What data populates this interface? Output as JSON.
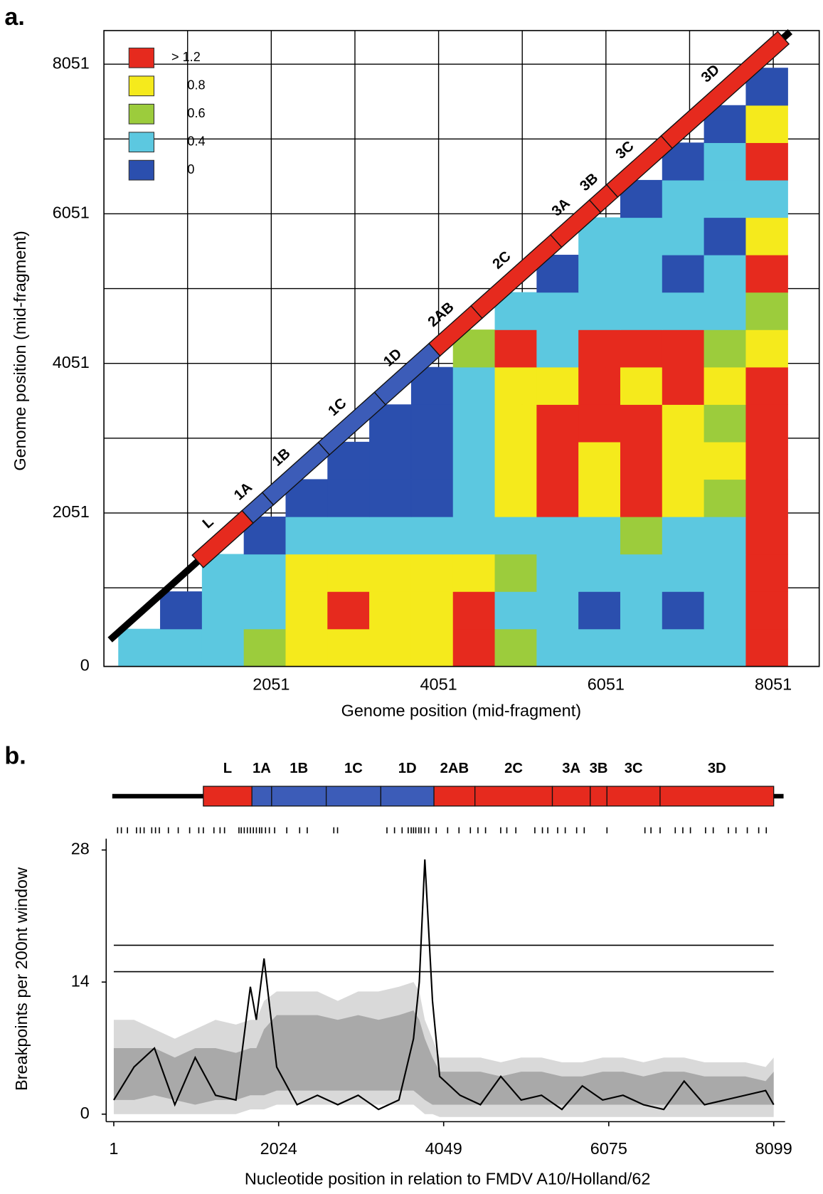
{
  "chart_data": [
    {
      "type": "heatmap",
      "panel": "a.",
      "xlabel": "Genome position (mid-fragment)",
      "ylabel": "Genome position (mid-fragment)",
      "xlim": [
        51,
        8600
      ],
      "ylim": [
        0,
        8500
      ],
      "xticks": [
        2051,
        4051,
        6051,
        8051
      ],
      "xminor": [
        1051,
        3051,
        5051,
        7051
      ],
      "yticks": [
        0,
        2051,
        4051,
        6051,
        8051
      ],
      "yminor": [
        1051,
        3051,
        5051,
        7051
      ],
      "grid": true,
      "color_scale": [
        {
          "value": 1.2,
          "label": "> 1.2",
          "color": "#e62a1e"
        },
        {
          "value": 0.8,
          "color": "#f5ea1c"
        },
        {
          "value": 0.6,
          "color": "#9ccc3c"
        },
        {
          "value": 0.4,
          "color": "#5cc8e0"
        },
        {
          "value": 0,
          "color": "#2b4fae"
        }
      ],
      "x_bins": [
        225,
        725,
        1225,
        1725,
        2225,
        2725,
        3225,
        3725,
        4225,
        4725,
        5225,
        5725,
        6225,
        6725,
        7225,
        7725,
        8225
      ],
      "y_bins": [
        0,
        500,
        1000,
        1500,
        2000,
        2500,
        3000,
        3500,
        4000,
        4500,
        5000,
        5500,
        6000,
        6500,
        7000,
        7500,
        8000
      ],
      "matrix": [
        [
          0.4,
          0.4,
          0.4,
          0.6,
          0.8,
          0.8,
          0.8,
          0.8,
          1.2,
          0.6,
          0.4,
          0.4,
          0.4,
          0.4,
          0.4,
          1.2
        ],
        [
          null,
          0,
          0.4,
          0.4,
          0.8,
          1.2,
          0.8,
          0.8,
          1.2,
          0.4,
          0.4,
          0,
          0.4,
          0,
          0.4,
          1.2
        ],
        [
          null,
          null,
          0.4,
          0.4,
          0.8,
          0.8,
          0.8,
          0.8,
          0.8,
          0.6,
          0.4,
          0.4,
          0.4,
          0.4,
          0.4,
          1.2
        ],
        [
          null,
          null,
          null,
          0,
          0.4,
          0.4,
          0.4,
          0.4,
          0.4,
          0.4,
          0.4,
          0.4,
          0.6,
          0.4,
          0.4,
          1.2
        ],
        [
          null,
          null,
          null,
          null,
          0,
          0,
          0,
          0,
          0.4,
          0.8,
          1.2,
          0.8,
          1.2,
          0.8,
          0.6,
          1.2
        ],
        [
          null,
          null,
          null,
          null,
          null,
          0,
          0,
          0,
          0.4,
          0.8,
          1.2,
          0.8,
          1.2,
          0.8,
          0.8,
          1.2
        ],
        [
          null,
          null,
          null,
          null,
          null,
          null,
          0,
          0,
          0.4,
          0.8,
          1.2,
          1.2,
          1.2,
          0.8,
          0.6,
          1.2
        ],
        [
          null,
          null,
          null,
          null,
          null,
          null,
          null,
          0,
          0.4,
          0.8,
          0.8,
          1.2,
          0.8,
          1.2,
          0.8,
          1.2
        ],
        [
          null,
          null,
          null,
          null,
          null,
          null,
          null,
          null,
          0.6,
          1.2,
          0.4,
          1.2,
          1.2,
          1.2,
          0.6,
          0.8
        ],
        [
          null,
          null,
          null,
          null,
          null,
          null,
          null,
          null,
          null,
          0.4,
          0.4,
          0.4,
          0.4,
          0.4,
          0.4,
          0.6
        ],
        [
          null,
          null,
          null,
          null,
          null,
          null,
          null,
          null,
          null,
          null,
          0,
          0.4,
          0.4,
          0,
          0.4,
          1.2
        ],
        [
          null,
          null,
          null,
          null,
          null,
          null,
          null,
          null,
          null,
          null,
          null,
          0.4,
          0.4,
          0.4,
          0,
          0.8
        ],
        [
          null,
          null,
          null,
          null,
          null,
          null,
          null,
          null,
          null,
          null,
          null,
          null,
          0,
          0.4,
          0.4,
          0.4
        ],
        [
          null,
          null,
          null,
          null,
          null,
          null,
          null,
          null,
          null,
          null,
          null,
          null,
          null,
          0,
          0.4,
          1.2
        ],
        [
          null,
          null,
          null,
          null,
          null,
          null,
          null,
          null,
          null,
          null,
          null,
          null,
          null,
          null,
          0,
          0.8
        ],
        [
          null,
          null,
          null,
          null,
          null,
          null,
          null,
          null,
          null,
          null,
          null,
          null,
          null,
          null,
          null,
          0
        ]
      ],
      "genes": [
        {
          "name": "L",
          "start": 1100,
          "end": 1696,
          "color": "#e62a1e"
        },
        {
          "name": "1A",
          "start": 1696,
          "end": 1938,
          "color": "#3c5cb8"
        },
        {
          "name": "1B",
          "start": 1938,
          "end": 2608,
          "color": "#3c5cb8"
        },
        {
          "name": "1C",
          "start": 2608,
          "end": 3278,
          "color": "#3c5cb8"
        },
        {
          "name": "1D",
          "start": 3278,
          "end": 3930,
          "color": "#3c5cb8"
        },
        {
          "name": "2AB",
          "start": 3930,
          "end": 4433,
          "color": "#e62a1e"
        },
        {
          "name": "2C",
          "start": 4433,
          "end": 5383,
          "color": "#e62a1e"
        },
        {
          "name": "3A",
          "start": 5383,
          "end": 5848,
          "color": "#e62a1e"
        },
        {
          "name": "3B",
          "start": 5848,
          "end": 6053,
          "color": "#e62a1e"
        },
        {
          "name": "3C",
          "start": 6053,
          "end": 6705,
          "color": "#e62a1e"
        },
        {
          "name": "3D",
          "start": 6705,
          "end": 8099,
          "color": "#e62a1e"
        }
      ]
    },
    {
      "type": "line",
      "panel": "b.",
      "xlabel": "Nucleotide position in relation to FMDV A10/Holland/62",
      "ylabel": "Breakpoints per 200nt window",
      "xlim": [
        1,
        8099
      ],
      "ylim": [
        -0.8,
        29.2
      ],
      "xticks": [
        1,
        2024,
        4049,
        6075,
        8099
      ],
      "yticks": [
        0,
        14,
        28
      ],
      "hlines": [
        17.9,
        15.1
      ],
      "rug": [
        48,
        94,
        169,
        280,
        327,
        373,
        467,
        513,
        560,
        671,
        792,
        932,
        1044,
        1100,
        1230,
        1305,
        1360,
        1537,
        1565,
        1602,
        1640,
        1677,
        1714,
        1751,
        1789,
        1817,
        1863,
        1910,
        1975,
        2124,
        2282,
        2375,
        2701,
        2747,
        3353,
        3446,
        3539,
        3614,
        3651,
        3679,
        3707,
        3744,
        3772,
        3818,
        3865,
        3958,
        4098,
        4237,
        4377,
        4470,
        4563,
        4749,
        4824,
        4935,
        5168,
        5261,
        5327,
        5448,
        5541,
        5681,
        5774,
        6053,
        6519,
        6593,
        6705,
        6891,
        6984,
        7077,
        7263,
        7357,
        7543,
        7636,
        7775,
        7915,
        8008
      ],
      "x": [
        1,
        250,
        500,
        750,
        1000,
        1250,
        1500,
        1677,
        1750,
        1845,
        2000,
        2250,
        2500,
        2750,
        3000,
        3250,
        3500,
        3679,
        3750,
        3818,
        3912,
        4000,
        4250,
        4500,
        4750,
        5000,
        5250,
        5500,
        5750,
        6000,
        6250,
        6500,
        6750,
        7000,
        7250,
        7500,
        7750,
        8000,
        8099
      ],
      "bands": [
        {
          "color": "#d9d9d9",
          "upper": [
            10,
            10,
            9,
            8,
            9,
            10,
            9.5,
            10,
            10,
            12,
            13,
            13,
            13,
            12,
            13,
            13,
            13.5,
            14,
            13,
            10,
            8,
            6,
            6,
            6,
            5.5,
            6,
            6,
            5.5,
            5.5,
            6,
            6,
            5.5,
            6,
            6,
            5.5,
            5.5,
            5.5,
            5,
            6
          ],
          "lower": [
            0,
            0,
            0,
            0,
            0,
            0,
            0,
            0.5,
            0.5,
            0.5,
            1,
            1,
            1,
            1,
            1,
            1,
            1,
            1,
            0.5,
            0,
            0,
            -0.3,
            -0.3,
            -0.3,
            -0.3,
            -0.3,
            -0.3,
            -0.3,
            -0.3,
            -0.3,
            -0.3,
            -0.3,
            -0.3,
            -0.3,
            -0.3,
            -0.3,
            -0.3,
            -0.3,
            -0.3
          ]
        },
        {
          "color": "#a9a9a9",
          "upper": [
            7,
            7,
            7,
            6,
            7,
            7,
            6.5,
            7,
            7,
            9,
            10.5,
            10.5,
            10.5,
            10,
            10.5,
            10,
            10.5,
            11,
            10,
            8,
            6,
            4.5,
            4.5,
            4.5,
            4,
            4.5,
            4.5,
            4,
            4,
            4.5,
            4.5,
            4,
            4.5,
            4.5,
            4,
            4,
            4,
            3.5,
            4.5
          ],
          "lower": [
            1.5,
            1.5,
            2,
            1.5,
            1,
            1.5,
            1.5,
            2,
            2,
            2,
            2.5,
            2.5,
            2.5,
            2.5,
            2.5,
            2.5,
            2.5,
            2.5,
            2,
            1.5,
            1,
            1,
            1,
            1,
            1,
            1,
            1,
            1,
            1,
            1,
            1,
            1,
            1,
            1,
            1,
            1,
            1,
            1,
            1
          ]
        }
      ],
      "series": [
        {
          "color": "#000000",
          "values": [
            1.5,
            5,
            7,
            1,
            6,
            2,
            1.5,
            13.5,
            10,
            16.5,
            5,
            1,
            2,
            1,
            2,
            0.5,
            1.5,
            8,
            14,
            27,
            12,
            4,
            2,
            1,
            4,
            1.5,
            2,
            0.5,
            3,
            1.5,
            2,
            1,
            0.5,
            3.5,
            1,
            1.5,
            2,
            2.5,
            1
          ]
        }
      ]
    }
  ]
}
